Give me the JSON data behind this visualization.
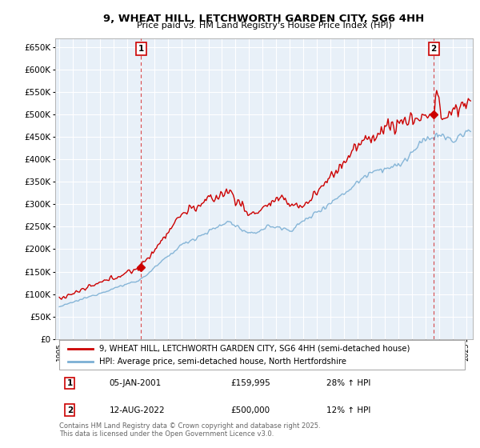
{
  "title": "9, WHEAT HILL, LETCHWORTH GARDEN CITY, SG6 4HH",
  "subtitle": "Price paid vs. HM Land Registry's House Price Index (HPI)",
  "ytick_vals": [
    0,
    50000,
    100000,
    150000,
    200000,
    250000,
    300000,
    350000,
    400000,
    450000,
    500000,
    550000,
    600000,
    650000
  ],
  "ylim": [
    0,
    670000
  ],
  "legend_property": "9, WHEAT HILL, LETCHWORTH GARDEN CITY, SG6 4HH (semi-detached house)",
  "legend_hpi": "HPI: Average price, semi-detached house, North Hertfordshire",
  "annotation1_date": "05-JAN-2001",
  "annotation1_price": "£159,995",
  "annotation1_change": "28% ↑ HPI",
  "annotation2_date": "12-AUG-2022",
  "annotation2_price": "£500,000",
  "annotation2_change": "12% ↑ HPI",
  "footer": "Contains HM Land Registry data © Crown copyright and database right 2025.\nThis data is licensed under the Open Government Licence v3.0.",
  "property_color": "#cc0000",
  "hpi_color": "#7bafd4",
  "annotation_color": "#cc0000",
  "background_color": "#ffffff",
  "plot_bg_color": "#e8f0f8",
  "grid_color": "#ffffff",
  "sale1_year": 2001.04,
  "sale1_price": 159995,
  "sale2_year": 2022.62,
  "sale2_price": 500000,
  "xmin": 1994.7,
  "xmax": 2025.5
}
